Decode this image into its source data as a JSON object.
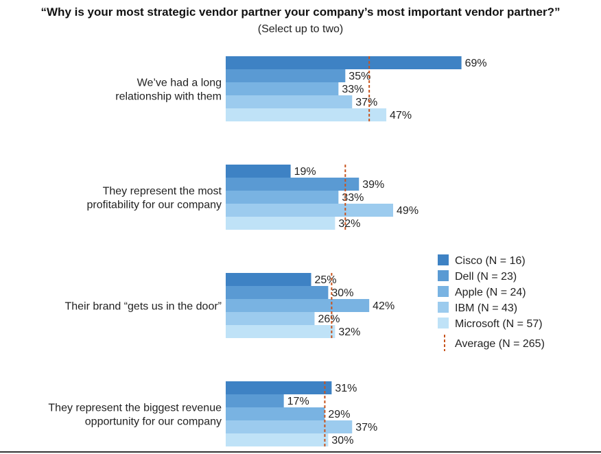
{
  "chart_data": {
    "type": "bar",
    "orientation": "horizontal",
    "title": "“Why is your most strategic vendor partner your company’s most important vendor partner?”",
    "subtitle": "(Select up to two)",
    "xlim": [
      0,
      100
    ],
    "grid": false,
    "legend_position": "right",
    "categories": [
      [
        "We’ve had a long",
        "relationship with them"
      ],
      [
        "They represent the most",
        "profitability for our company"
      ],
      [
        "Their brand “gets us in the door”"
      ],
      [
        "They represent the biggest revenue",
        "opportunity for our company"
      ]
    ],
    "series": [
      {
        "name": "Cisco (N = 16)",
        "color": "#3e82c4",
        "values": [
          69,
          19,
          25,
          31
        ]
      },
      {
        "name": "Dell (N = 23)",
        "color": "#5a9ad3",
        "values": [
          35,
          39,
          30,
          17
        ]
      },
      {
        "name": "Apple (N = 24)",
        "color": "#79b3e2",
        "values": [
          33,
          33,
          42,
          29
        ]
      },
      {
        "name": "IBM (N = 43)",
        "color": "#9ccbee",
        "values": [
          37,
          49,
          26,
          37
        ]
      },
      {
        "name": "Microsoft (N = 57)",
        "color": "#bfe2f7",
        "values": [
          47,
          32,
          32,
          30
        ]
      }
    ],
    "average": {
      "name": "Average (N = 265)",
      "color": "#c8541e",
      "values": [
        42,
        35,
        31,
        29
      ]
    },
    "value_suffix": "%"
  }
}
